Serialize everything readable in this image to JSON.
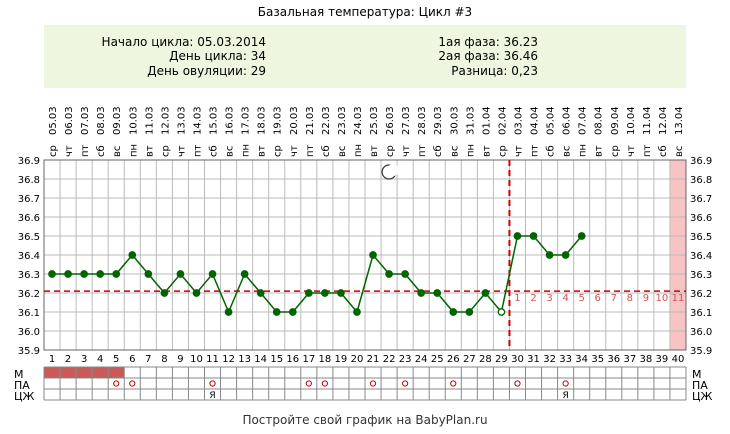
{
  "header": {
    "title": "Базальная температура: Цикл #3",
    "cycle_start": "Начало цикла: 05.03.2014",
    "cycle_day": "День цикла: 34",
    "ovulation_day": "День овуляции: 29",
    "phase1": "1ая фаза: 36.23",
    "phase2": "2ая фаза: 36.46",
    "difference": "Разница: 0,23"
  },
  "footer": {
    "text": "Постройте свой график на BabyPlan.ru"
  },
  "row_labels": {
    "m": "М",
    "pa": "ПА",
    "cj": "ЦЖ"
  },
  "colors": {
    "header_bg": "#eef6df",
    "line": "#006400",
    "coverline": "#cc0000",
    "menstruation": "#c85a5a",
    "predicted_period": "#f7c3c3",
    "grid": "#888888",
    "phase2_day_numbers": "#cc5555"
  },
  "chart_data": {
    "type": "line",
    "days": [
      1,
      2,
      3,
      4,
      5,
      6,
      7,
      8,
      9,
      10,
      11,
      12,
      13,
      14,
      15,
      16,
      17,
      18,
      19,
      20,
      21,
      22,
      23,
      24,
      25,
      26,
      27,
      28,
      29,
      30,
      31,
      32,
      33,
      34,
      35,
      36,
      37,
      38,
      39,
      40
    ],
    "dates": [
      "05.03",
      "06.03",
      "07.03",
      "08.03",
      "09.03",
      "10.03",
      "11.03",
      "12.03",
      "13.03",
      "14.03",
      "15.03",
      "16.03",
      "17.03",
      "18.03",
      "19.03",
      "20.03",
      "21.03",
      "22.03",
      "23.03",
      "24.03",
      "25.03",
      "26.03",
      "27.03",
      "28.03",
      "29.03",
      "30.03",
      "31.03",
      "01.04",
      "02.04",
      "03.04",
      "04.04",
      "05.04",
      "06.04",
      "07.04",
      "08.04",
      "09.04",
      "10.04",
      "11.04",
      "12.04",
      "13.04"
    ],
    "weekdays": [
      "ср",
      "чт",
      "пт",
      "сб",
      "вс",
      "пн",
      "вт",
      "ср",
      "чт",
      "пт",
      "сб",
      "вс",
      "пн",
      "вт",
      "ср",
      "чт",
      "пт",
      "сб",
      "вс",
      "пн",
      "вт",
      "ср",
      "чт",
      "пт",
      "сб",
      "вс",
      "пн",
      "вт",
      "ср",
      "чт",
      "пт",
      "сб",
      "вс",
      "пн",
      "вт",
      "ср",
      "чт",
      "пт",
      "сб",
      "вс"
    ],
    "temperatures": [
      36.3,
      36.3,
      36.3,
      36.3,
      36.3,
      36.4,
      36.3,
      36.2,
      36.3,
      36.2,
      36.3,
      36.1,
      36.3,
      36.2,
      36.1,
      36.1,
      36.2,
      36.2,
      36.2,
      36.1,
      36.4,
      36.3,
      36.3,
      36.2,
      36.2,
      36.1,
      36.1,
      36.2,
      36.1,
      36.5,
      36.5,
      36.4,
      36.4,
      36.5
    ],
    "y_ticks": [
      "35.9",
      "36.0",
      "36.1",
      "36.2",
      "36.3",
      "36.4",
      "36.5",
      "36.6",
      "36.7",
      "36.8",
      "36.9"
    ],
    "ylim": [
      35.9,
      36.9
    ],
    "coverline": 36.21,
    "ovulation_day": 29,
    "moon_day": 22,
    "luteal_labels": [
      "1",
      "2",
      "3",
      "4",
      "5",
      "6",
      "7",
      "8",
      "9",
      "10",
      "11"
    ],
    "predicted_period_day": 40,
    "menstruation_days": [
      1,
      2,
      3,
      4,
      5
    ],
    "pa_marks": [
      "o",
      "o",
      "",
      "o",
      "o",
      "o",
      "o",
      "o",
      "o",
      "o",
      "o"
    ],
    "pa_days": [
      5,
      6,
      0,
      11,
      17,
      18,
      21,
      23,
      26,
      30,
      33
    ],
    "cj_marks": [
      "Я",
      "Я"
    ],
    "cj_days": [
      11,
      33
    ]
  }
}
